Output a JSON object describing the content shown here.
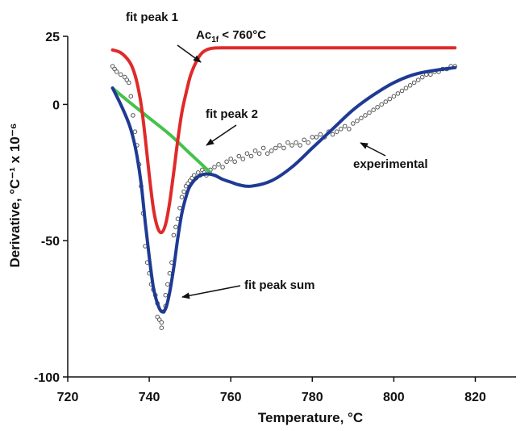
{
  "chart_data": {
    "type": "line",
    "xlabel": "Temperature, °C",
    "ylabel": "Derivative, °C⁻¹ x 10⁻⁶",
    "xlim": [
      720,
      830
    ],
    "ylim": [
      -100,
      25
    ],
    "x_ticks": [
      720,
      740,
      760,
      780,
      800,
      820
    ],
    "y_ticks": [
      25,
      0,
      -50,
      -100
    ],
    "grid": false,
    "colors": {
      "fit_peak_1": "#e02a2a",
      "fit_peak_2": "#44c24a",
      "fit_peak_sum": "#1f3a93",
      "experimental": "#555555"
    },
    "series": [
      {
        "name": "fit peak 1",
        "x": [
          731,
          733,
          735,
          736,
          737,
          738,
          739,
          740,
          741,
          742,
          743,
          744,
          745,
          746,
          747,
          748,
          749,
          750,
          751,
          752,
          753,
          754,
          755,
          756,
          758,
          765,
          775,
          790,
          815
        ],
        "values": [
          20,
          19,
          16,
          13,
          8,
          0,
          -12,
          -26,
          -38,
          -45,
          -47,
          -44,
          -36,
          -25,
          -13,
          -3,
          4,
          10,
          14,
          17,
          19,
          20,
          20.5,
          20.7,
          20.8,
          20.8,
          20.8,
          20.8,
          20.8
        ]
      },
      {
        "name": "fit peak 2",
        "x": [
          731,
          735,
          740,
          745,
          750,
          755
        ],
        "values": [
          6,
          1,
          -5,
          -11,
          -18,
          -25
        ]
      },
      {
        "name": "fit peak sum",
        "x": [
          731,
          733,
          735,
          736,
          737,
          738,
          739,
          740,
          741,
          742,
          743,
          744,
          745,
          746,
          747,
          748,
          749,
          750,
          752,
          754,
          756,
          758,
          760,
          762,
          765,
          770,
          775,
          780,
          785,
          790,
          795,
          800,
          805,
          810,
          815
        ],
        "values": [
          6,
          0,
          -7,
          -12,
          -19,
          -29,
          -43,
          -56,
          -67,
          -73,
          -76,
          -75,
          -69,
          -60,
          -49,
          -40,
          -34,
          -30,
          -26.5,
          -25.5,
          -26,
          -27.5,
          -28.5,
          -29.5,
          -30,
          -28,
          -23,
          -16,
          -9,
          -2,
          3.5,
          8,
          11,
          12.5,
          13.5
        ]
      }
    ],
    "experimental": {
      "name": "experimental",
      "x": [
        731,
        731.5,
        732,
        733,
        734,
        734.5,
        735,
        735.5,
        736,
        736.5,
        737,
        737.5,
        738,
        738.5,
        739,
        739.5,
        740,
        740.5,
        741,
        741.5,
        742,
        742,
        742.5,
        743,
        743,
        743.5,
        744,
        744,
        744.5,
        745,
        745.5,
        746,
        746.5,
        747,
        747.5,
        748,
        748.5,
        749,
        749.5,
        750,
        750.5,
        751,
        751.5,
        752,
        752.5,
        753,
        753.5,
        754,
        755,
        756,
        757,
        758,
        759,
        760,
        761,
        762,
        763,
        764,
        765,
        766,
        767,
        768,
        769,
        770,
        771,
        772,
        773,
        774,
        775,
        776,
        777,
        778,
        779,
        780,
        781,
        782,
        783,
        784,
        785,
        786,
        787,
        788,
        789,
        790,
        791,
        792,
        793,
        794,
        795,
        796,
        797,
        798,
        799,
        800,
        801,
        802,
        803,
        804,
        805,
        806,
        807,
        808,
        809,
        810,
        811,
        812,
        813,
        814,
        815
      ],
      "values": [
        14,
        13,
        12,
        11,
        10,
        9,
        8,
        3,
        -4,
        -10,
        -15,
        -22,
        -30,
        -40,
        -52,
        -58,
        -62,
        -66,
        -68,
        -70,
        -73,
        -78,
        -79,
        -80,
        -82,
        -76,
        -74,
        -70,
        -66,
        -62,
        -58,
        -48,
        -45,
        -42,
        -38,
        -34,
        -32,
        -30,
        -29,
        -28,
        -27,
        -26,
        -27,
        -25,
        -26,
        -24,
        -25,
        -26,
        -24,
        -23,
        -22,
        -23,
        -21,
        -20,
        -21,
        -19,
        -20,
        -18,
        -19,
        -17,
        -18,
        -16,
        -18,
        -17,
        -16,
        -15,
        -16,
        -14,
        -15,
        -14,
        -15,
        -13,
        -14,
        -12,
        -12,
        -11,
        -12,
        -10,
        -11,
        -10,
        -9,
        -8,
        -9,
        -7,
        -6,
        -5,
        -4,
        -3,
        -2,
        -1,
        0,
        1,
        2,
        3,
        4,
        5,
        6,
        7,
        8,
        9,
        10,
        11,
        11,
        12,
        12,
        13,
        13,
        14,
        14
      ]
    },
    "annotations": {
      "fit_peak_1": "fit peak 1",
      "ac_temp_main": "Ac",
      "ac_temp_sub": "1f",
      "ac_temp_rest": " < 760°C",
      "fit_peak_2": "fit peak 2",
      "experimental": "experimental",
      "fit_peak_sum": "fit peak sum"
    }
  }
}
